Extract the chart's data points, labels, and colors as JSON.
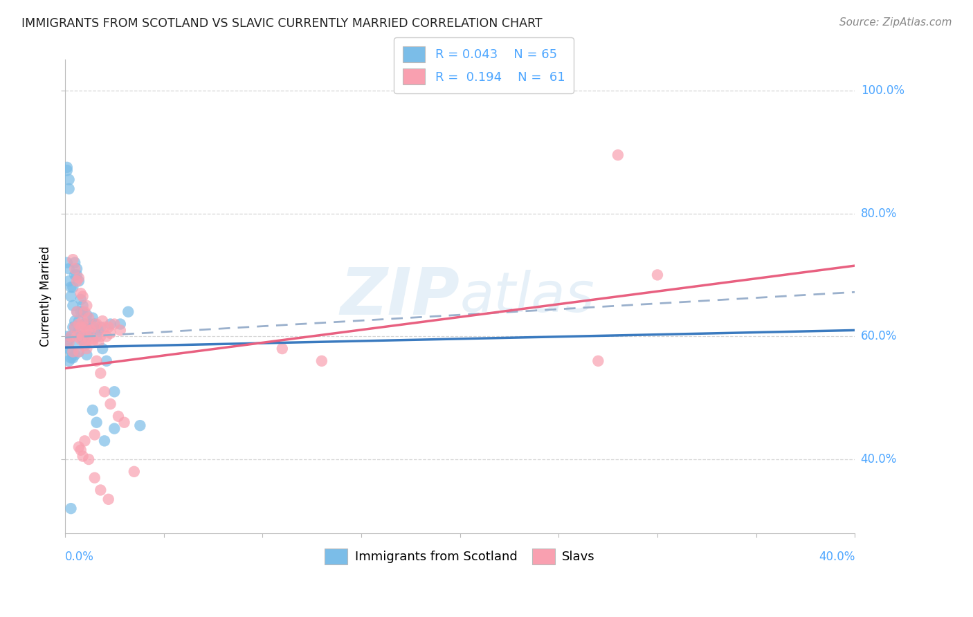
{
  "title": "IMMIGRANTS FROM SCOTLAND VS SLAVIC CURRENTLY MARRIED CORRELATION CHART",
  "source": "Source: ZipAtlas.com",
  "ylabel": "Currently Married",
  "ytick_labels": [
    "40.0%",
    "60.0%",
    "80.0%",
    "100.0%"
  ],
  "ytick_values": [
    0.4,
    0.6,
    0.8,
    1.0
  ],
  "xlim": [
    0.0,
    0.4
  ],
  "ylim": [
    0.28,
    1.05
  ],
  "r1": 0.043,
  "n1": 65,
  "r2": 0.194,
  "n2": 61,
  "color_blue": "#7bbde8",
  "color_pink": "#f9a0b0",
  "color_line_blue": "#3a7abf",
  "color_line_pink": "#e86080",
  "color_dashed": "#9ab0cc",
  "color_axis_text": "#4da6ff",
  "background": "#ffffff",
  "watermark": "ZIPAtlas",
  "blue_line_x0": 0.0,
  "blue_line_x1": 0.4,
  "blue_line_y0": 0.582,
  "blue_line_y1": 0.61,
  "dash_line_y0": 0.598,
  "dash_line_y1": 0.672,
  "pink_line_y0": 0.548,
  "pink_line_y1": 0.715,
  "blue_x": [
    0.001,
    0.001,
    0.002,
    0.002,
    0.002,
    0.003,
    0.003,
    0.003,
    0.004,
    0.004,
    0.005,
    0.005,
    0.005,
    0.006,
    0.006,
    0.007,
    0.007,
    0.007,
    0.008,
    0.008,
    0.009,
    0.009,
    0.01,
    0.01,
    0.011,
    0.011,
    0.012,
    0.013,
    0.014,
    0.015,
    0.016,
    0.017,
    0.018,
    0.019,
    0.021,
    0.023,
    0.025,
    0.028,
    0.032,
    0.038,
    0.001,
    0.002,
    0.002,
    0.003,
    0.003,
    0.004,
    0.004,
    0.005,
    0.005,
    0.006,
    0.006,
    0.007,
    0.008,
    0.009,
    0.01,
    0.012,
    0.014,
    0.016,
    0.02,
    0.025,
    0.001,
    0.001,
    0.002,
    0.002,
    0.003
  ],
  "blue_y": [
    0.59,
    0.6,
    0.58,
    0.595,
    0.56,
    0.6,
    0.575,
    0.565,
    0.615,
    0.565,
    0.615,
    0.625,
    0.57,
    0.64,
    0.59,
    0.61,
    0.625,
    0.575,
    0.6,
    0.64,
    0.65,
    0.595,
    0.62,
    0.59,
    0.57,
    0.635,
    0.61,
    0.62,
    0.63,
    0.62,
    0.6,
    0.61,
    0.615,
    0.58,
    0.56,
    0.62,
    0.51,
    0.62,
    0.64,
    0.455,
    0.72,
    0.71,
    0.69,
    0.68,
    0.665,
    0.68,
    0.65,
    0.7,
    0.72,
    0.71,
    0.7,
    0.69,
    0.66,
    0.64,
    0.62,
    0.6,
    0.48,
    0.46,
    0.43,
    0.45,
    0.875,
    0.87,
    0.855,
    0.84,
    0.32
  ],
  "pink_x": [
    0.002,
    0.003,
    0.004,
    0.005,
    0.006,
    0.006,
    0.007,
    0.007,
    0.008,
    0.008,
    0.009,
    0.009,
    0.01,
    0.01,
    0.011,
    0.011,
    0.012,
    0.013,
    0.014,
    0.015,
    0.016,
    0.017,
    0.018,
    0.019,
    0.02,
    0.021,
    0.022,
    0.023,
    0.025,
    0.028,
    0.004,
    0.005,
    0.006,
    0.007,
    0.008,
    0.009,
    0.01,
    0.011,
    0.012,
    0.014,
    0.016,
    0.018,
    0.02,
    0.023,
    0.027,
    0.03,
    0.035,
    0.27,
    0.3,
    0.28,
    0.13,
    0.015,
    0.007,
    0.008,
    0.009,
    0.01,
    0.012,
    0.015,
    0.018,
    0.022,
    0.11
  ],
  "pink_y": [
    0.59,
    0.6,
    0.575,
    0.615,
    0.6,
    0.64,
    0.575,
    0.62,
    0.595,
    0.615,
    0.6,
    0.625,
    0.615,
    0.585,
    0.61,
    0.58,
    0.595,
    0.61,
    0.595,
    0.615,
    0.62,
    0.59,
    0.6,
    0.625,
    0.615,
    0.6,
    0.615,
    0.605,
    0.62,
    0.61,
    0.725,
    0.71,
    0.69,
    0.695,
    0.67,
    0.665,
    0.64,
    0.65,
    0.63,
    0.59,
    0.56,
    0.54,
    0.51,
    0.49,
    0.47,
    0.46,
    0.38,
    0.56,
    0.7,
    0.895,
    0.56,
    0.44,
    0.42,
    0.415,
    0.405,
    0.43,
    0.4,
    0.37,
    0.35,
    0.335,
    0.58
  ]
}
